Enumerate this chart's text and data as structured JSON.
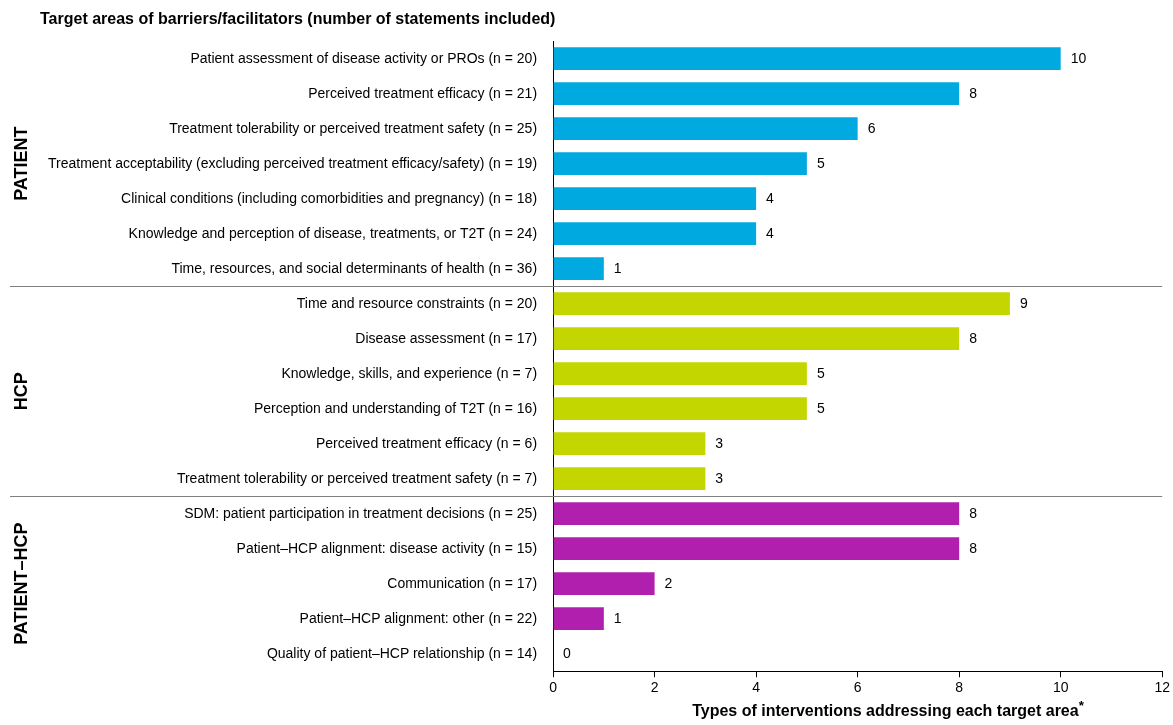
{
  "chart_data": {
    "type": "bar",
    "orientation": "horizontal",
    "title": "Target areas of barriers/facilitators (number of statements included)",
    "xlabel": "Types of interventions addressing each target area$^{*}$",
    "categories": [
      "Patient assessment of disease activity or PROs (n = 20)",
      "Perceived treatment efficacy (n = 21)",
      "Treatment tolerability or perceived treatment safety (n = 25)",
      "Treatment acceptability (excluding perceived treatment efficacy/safety) (n = 19)",
      "Clinical conditions (including comorbidities and pregnancy) (n = 18)",
      "Knowledge and perception of disease, treatments, or T2T (n = 24)",
      "Time, resources, and social determinants of health (n = 36)",
      "Time and resource constraints (n = 20)",
      "Disease assessment (n = 17)",
      "Knowledge, skills, and experience (n = 7)",
      "Perception and understanding of T2T (n = 16)",
      "Perceived treatment efficacy (n = 6)",
      "Treatment tolerability or perceived treatment safety (n = 7)",
      "SDM: patient participation in treatment decisions (n = 25)",
      "Patient–HCP alignment: disease activity (n = 15)",
      "Communication (n = 17)",
      "Patient–HCP alignment: other (n = 22)",
      "Quality of patient–HCP relationship (n = 14)"
    ],
    "values": [
      10,
      8,
      6,
      5,
      4,
      4,
      1,
      9,
      8,
      5,
      5,
      3,
      3,
      8,
      8,
      2,
      1,
      0
    ],
    "colors": [
      "#00a9e0",
      "#00a9e0",
      "#00a9e0",
      "#00a9e0",
      "#00a9e0",
      "#00a9e0",
      "#00a9e0",
      "#c4d600",
      "#c4d600",
      "#c4d600",
      "#c4d600",
      "#c4d600",
      "#c4d600",
      "#b01fad",
      "#b01fad",
      "#b01fad",
      "#b01fad",
      "#b01fad"
    ],
    "xlim": [
      0,
      12
    ],
    "xticks": [
      0,
      2,
      4,
      6,
      8,
      10,
      12
    ],
    "data_labels": true,
    "grid": false,
    "legend": false,
    "annotations": [
      "PATIENT",
      "HCP",
      "PATIENT–HCP"
    ]
  }
}
